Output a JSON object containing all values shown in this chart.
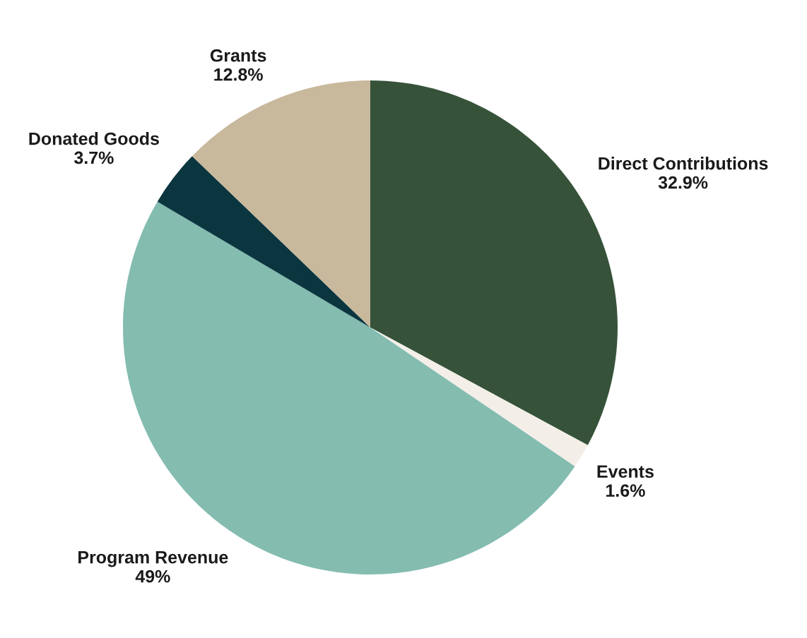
{
  "chart_data": {
    "type": "pie",
    "categories": [
      "Direct Contributions",
      "Events",
      "Program Revenue",
      "Donated Goods",
      "Grants"
    ],
    "values": [
      32.9,
      1.6,
      49,
      3.7,
      12.8
    ],
    "value_labels": [
      "32.9%",
      "1.6%",
      "49%",
      "3.7%",
      "12.8%"
    ],
    "colors": [
      "#36533a",
      "#f3efe8",
      "#84bcb0",
      "#0b3640",
      "#c8b89c"
    ],
    "legend": false
  }
}
